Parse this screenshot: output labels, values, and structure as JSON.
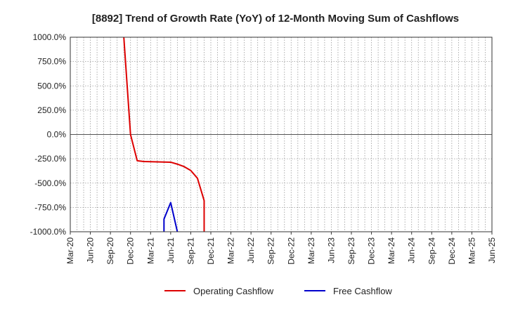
{
  "chart_data": {
    "type": "line",
    "title": "[8892]  Trend of Growth Rate (YoY) of 12-Month Moving Sum of Cashflows",
    "xlabel": "",
    "ylabel": "",
    "ylim": [
      -1000,
      1000
    ],
    "yticks": [
      1000,
      750,
      500,
      250,
      0,
      -250,
      -500,
      -750,
      -1000
    ],
    "ytick_labels": [
      "1000.0%",
      "750.0%",
      "500.0%",
      "250.0%",
      "0.0%",
      "-250.0%",
      "-500.0%",
      "-750.0%",
      "-1000.0%"
    ],
    "xticks": [
      "2020-03",
      "2020-06",
      "2020-09",
      "2020-12",
      "2021-03",
      "2021-06",
      "2021-09",
      "2021-12",
      "2022-03",
      "2022-06",
      "2022-09",
      "2022-12",
      "2023-03",
      "2023-06",
      "2023-09",
      "2023-12",
      "2024-03",
      "2024-06",
      "2024-09",
      "2024-12",
      "2025-03",
      "2025-06"
    ],
    "xtick_labels": [
      "Mar-20",
      "Jun-20",
      "Sep-20",
      "Dec-20",
      "Mar-21",
      "Jun-21",
      "Sep-21",
      "Dec-21",
      "Mar-22",
      "Jun-22",
      "Sep-22",
      "Dec-22",
      "Mar-23",
      "Jun-23",
      "Sep-23",
      "Dec-23",
      "Mar-24",
      "Jun-24",
      "Sep-24",
      "Dec-24",
      "Mar-25",
      "Jun-25"
    ],
    "xlim": [
      "2020-03",
      "2025-06"
    ],
    "grid": true,
    "legend_position": "bottom-center",
    "series": [
      {
        "name": "Operating Cashflow",
        "color": "#dd0000",
        "points": [
          [
            "2020-11",
            1000
          ],
          [
            "2020-12",
            0
          ],
          [
            "2021-01",
            -270
          ],
          [
            "2021-02",
            -278
          ],
          [
            "2021-03",
            -280
          ],
          [
            "2021-04",
            -282
          ],
          [
            "2021-05",
            -283
          ],
          [
            "2021-06",
            -285
          ],
          [
            "2021-07",
            -305
          ],
          [
            "2021-08",
            -330
          ],
          [
            "2021-09",
            -370
          ],
          [
            "2021-10",
            -450
          ],
          [
            "2021-11",
            -680
          ],
          [
            "2021-11",
            -1000
          ]
        ]
      },
      {
        "name": "Free Cashflow",
        "color": "#0000cc",
        "points": [
          [
            "2021-05",
            -1000
          ],
          [
            "2021-05",
            -870
          ],
          [
            "2021-06",
            -700
          ],
          [
            "2021-07",
            -1000
          ]
        ]
      }
    ]
  }
}
